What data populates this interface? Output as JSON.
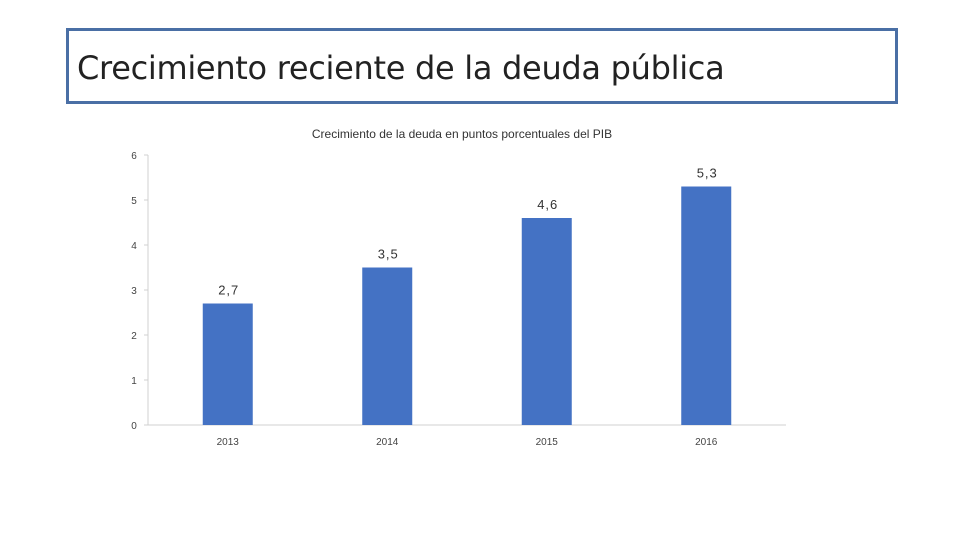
{
  "slide": {
    "title": "Crecimiento reciente de la deuda pública"
  },
  "chart_data": {
    "type": "bar",
    "title": "Crecimiento de la deuda en puntos porcentuales del PIB",
    "categories": [
      "2013",
      "2014",
      "2015",
      "2016"
    ],
    "values": [
      2.7,
      3.5,
      4.6,
      5.3
    ],
    "data_labels": [
      "2,7",
      "3,5",
      "4,6",
      "5,3"
    ],
    "yticks": [
      0,
      1,
      2,
      3,
      4,
      5,
      6
    ],
    "ylim": [
      0,
      6
    ],
    "xlabel": "",
    "ylabel": "",
    "grid": false,
    "legend": "none",
    "bar_color": "#4472c4",
    "axis_color": "#d0d0d0"
  }
}
